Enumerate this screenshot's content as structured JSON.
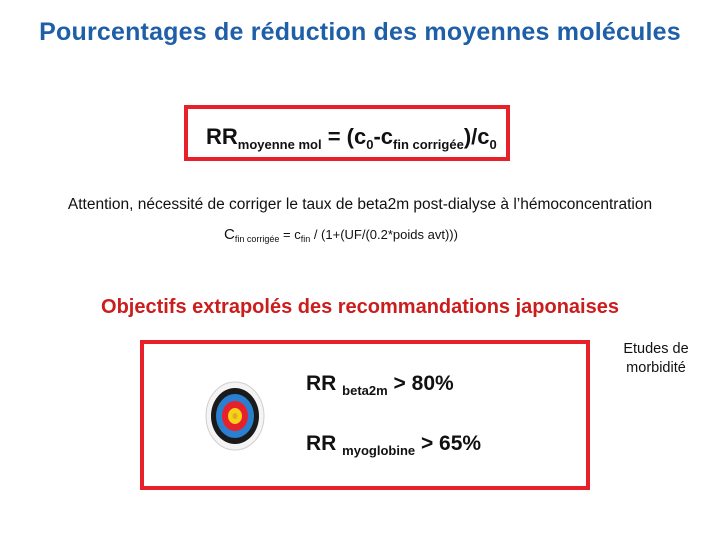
{
  "title": "Pourcentages de réduction des moyennes molécules",
  "formula": {
    "rr": "RR",
    "rr_sub": "moyenne mol",
    "eq": " = (c",
    "c0_sub": "0",
    "minus_c": "-c",
    "cfin_sub": "fin corrigée",
    "end": ")/c",
    "c0_sub2": "0"
  },
  "note": "Attention, nécessité de corriger le taux de beta2m post-dialyse à l’hémoconcentration",
  "correction": {
    "c": "C",
    "c_sub": "fin corrigée",
    "eq": " =  c",
    "cfin_sub": "fin",
    "rest": " / (1+(UF/(0.2*poids avt)))"
  },
  "objectives_title": "Objectifs extrapolés des recommandations japonaises",
  "objectives": [
    {
      "rr": "RR ",
      "sub": "beta2m",
      "value": " > 80%"
    },
    {
      "rr": "RR ",
      "sub": "myoglobine",
      "value": " > 65%"
    }
  ],
  "side_note": "Etudes de morbidité",
  "colors": {
    "title": "#1f5fa8",
    "accent_red": "#e8202a",
    "objectives_title": "#cc1d1d"
  },
  "icons": {
    "target": "target-icon"
  }
}
